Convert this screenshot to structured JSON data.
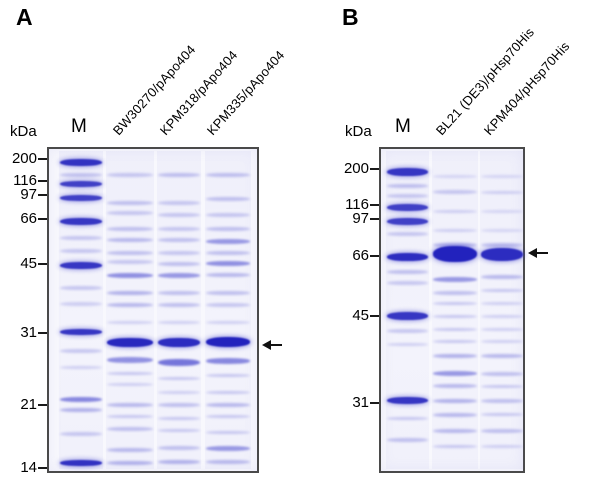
{
  "panels": [
    {
      "label": "A",
      "unit_label": "kDa",
      "marker_lane_label": "M",
      "sample_lane_labels": [
        "BW30270/pApo404",
        "KPM318/pApo404",
        "KPM335/pApo404"
      ],
      "markers": [
        {
          "kda": "200",
          "pct": 3.7
        },
        {
          "kda": "116",
          "pct": 10.4
        },
        {
          "kda": "97",
          "pct": 14.7
        },
        {
          "kda": "66",
          "pct": 22.1
        },
        {
          "kda": "45",
          "pct": 35.9
        },
        {
          "kda": "31",
          "pct": 57.0
        },
        {
          "kda": "21",
          "pct": 79.1
        },
        {
          "kda": "14",
          "pct": 98.5
        }
      ],
      "arrow_pct": 60.7,
      "lanes": [
        {
          "name": "M",
          "bands": [
            {
              "p": 3.7,
              "h": 7,
              "o": 0.92
            },
            {
              "p": 7.6,
              "h": 4,
              "o": 0.33
            },
            {
              "p": 10.4,
              "h": 6,
              "o": 0.85
            },
            {
              "p": 14.7,
              "h": 6,
              "o": 0.85
            },
            {
              "p": 22.1,
              "h": 7,
              "o": 0.9
            },
            {
              "p": 27.5,
              "h": 4,
              "o": 0.3
            },
            {
              "p": 31.5,
              "h": 4,
              "o": 0.3
            },
            {
              "p": 35.9,
              "h": 7,
              "o": 0.9
            },
            {
              "p": 43.0,
              "h": 4,
              "o": 0.3
            },
            {
              "p": 48.0,
              "h": 4,
              "o": 0.25
            },
            {
              "p": 57.0,
              "h": 6,
              "o": 0.9
            },
            {
              "p": 63.0,
              "h": 4,
              "o": 0.3
            },
            {
              "p": 68.0,
              "h": 3,
              "o": 0.25
            },
            {
              "p": 78.0,
              "h": 5,
              "o": 0.6
            },
            {
              "p": 81.5,
              "h": 4,
              "o": 0.45
            },
            {
              "p": 89.0,
              "h": 4,
              "o": 0.3
            },
            {
              "p": 98.0,
              "h": 6,
              "o": 0.92
            }
          ]
        },
        {
          "name": "BW30270/pApo404",
          "bands": [
            {
              "p": 7.6,
              "h": 4,
              "o": 0.3
            },
            {
              "p": 16.5,
              "h": 4,
              "o": 0.35
            },
            {
              "p": 19.5,
              "h": 4,
              "o": 0.3
            },
            {
              "p": 24.5,
              "h": 4,
              "o": 0.35
            },
            {
              "p": 28.0,
              "h": 4,
              "o": 0.4
            },
            {
              "p": 32.0,
              "h": 4,
              "o": 0.35
            },
            {
              "p": 35.0,
              "h": 4,
              "o": 0.3
            },
            {
              "p": 39.0,
              "h": 5,
              "o": 0.55
            },
            {
              "p": 44.5,
              "h": 4,
              "o": 0.45
            },
            {
              "p": 48.5,
              "h": 4,
              "o": 0.4
            },
            {
              "p": 54.0,
              "h": 3,
              "o": 0.25
            },
            {
              "p": 60.2,
              "h": 9,
              "o": 0.97
            },
            {
              "p": 65.8,
              "h": 6,
              "o": 0.55
            },
            {
              "p": 70.0,
              "h": 3,
              "o": 0.3
            },
            {
              "p": 73.5,
              "h": 3,
              "o": 0.25
            },
            {
              "p": 79.8,
              "h": 4,
              "o": 0.4
            },
            {
              "p": 83.5,
              "h": 3,
              "o": 0.3
            },
            {
              "p": 87.5,
              "h": 4,
              "o": 0.35
            },
            {
              "p": 94.0,
              "h": 4,
              "o": 0.4
            },
            {
              "p": 98.0,
              "h": 4,
              "o": 0.45
            }
          ]
        },
        {
          "name": "KPM318/pApo404",
          "bands": [
            {
              "p": 7.6,
              "h": 4,
              "o": 0.35
            },
            {
              "p": 16.5,
              "h": 4,
              "o": 0.3
            },
            {
              "p": 20.0,
              "h": 4,
              "o": 0.3
            },
            {
              "p": 24.5,
              "h": 4,
              "o": 0.3
            },
            {
              "p": 28.0,
              "h": 4,
              "o": 0.35
            },
            {
              "p": 32.0,
              "h": 4,
              "o": 0.3
            },
            {
              "p": 35.5,
              "h": 4,
              "o": 0.35
            },
            {
              "p": 39.0,
              "h": 5,
              "o": 0.5
            },
            {
              "p": 44.5,
              "h": 4,
              "o": 0.35
            },
            {
              "p": 48.5,
              "h": 4,
              "o": 0.35
            },
            {
              "p": 54.0,
              "h": 3,
              "o": 0.25
            },
            {
              "p": 60.2,
              "h": 9,
              "o": 0.95
            },
            {
              "p": 66.5,
              "h": 7,
              "o": 0.7
            },
            {
              "p": 71.5,
              "h": 3,
              "o": 0.3
            },
            {
              "p": 76.0,
              "h": 3,
              "o": 0.25
            },
            {
              "p": 79.8,
              "h": 4,
              "o": 0.35
            },
            {
              "p": 84.0,
              "h": 3,
              "o": 0.3
            },
            {
              "p": 88.0,
              "h": 3,
              "o": 0.3
            },
            {
              "p": 93.5,
              "h": 4,
              "o": 0.35
            },
            {
              "p": 97.8,
              "h": 4,
              "o": 0.45
            }
          ]
        },
        {
          "name": "KPM335/pApo404",
          "bands": [
            {
              "p": 7.6,
              "h": 4,
              "o": 0.35
            },
            {
              "p": 15.0,
              "h": 4,
              "o": 0.35
            },
            {
              "p": 20.0,
              "h": 4,
              "o": 0.3
            },
            {
              "p": 24.5,
              "h": 4,
              "o": 0.35
            },
            {
              "p": 28.5,
              "h": 5,
              "o": 0.5
            },
            {
              "p": 32.0,
              "h": 4,
              "o": 0.35
            },
            {
              "p": 35.5,
              "h": 5,
              "o": 0.55
            },
            {
              "p": 39.0,
              "h": 4,
              "o": 0.4
            },
            {
              "p": 44.5,
              "h": 4,
              "o": 0.35
            },
            {
              "p": 48.5,
              "h": 4,
              "o": 0.3
            },
            {
              "p": 54.0,
              "h": 3,
              "o": 0.25
            },
            {
              "p": 60.2,
              "h": 10,
              "o": 1.0
            },
            {
              "p": 66.0,
              "h": 6,
              "o": 0.6
            },
            {
              "p": 70.5,
              "h": 3,
              "o": 0.3
            },
            {
              "p": 76.0,
              "h": 3,
              "o": 0.3
            },
            {
              "p": 79.8,
              "h": 4,
              "o": 0.4
            },
            {
              "p": 83.5,
              "h": 3,
              "o": 0.3
            },
            {
              "p": 88.5,
              "h": 3,
              "o": 0.3
            },
            {
              "p": 93.5,
              "h": 5,
              "o": 0.5
            },
            {
              "p": 97.8,
              "h": 4,
              "o": 0.4
            }
          ]
        }
      ]
    },
    {
      "label": "B",
      "unit_label": "kDa",
      "marker_lane_label": "M",
      "sample_lane_labels": [
        "BL21 (DE3)/pHsp70His",
        "KPM404/pHsp70His"
      ],
      "markers": [
        {
          "kda": "200",
          "pct": 6.7
        },
        {
          "kda": "116",
          "pct": 17.8
        },
        {
          "kda": "97",
          "pct": 22.1
        },
        {
          "kda": "66",
          "pct": 33.4
        },
        {
          "kda": "45",
          "pct": 51.8
        },
        {
          "kda": "31",
          "pct": 78.5
        }
      ],
      "arrow_pct": 32.5,
      "lanes": [
        {
          "name": "M",
          "bands": [
            {
              "p": 6.7,
              "h": 8,
              "o": 0.9
            },
            {
              "p": 11.0,
              "h": 4,
              "o": 0.35
            },
            {
              "p": 14.0,
              "h": 4,
              "o": 0.3
            },
            {
              "p": 17.8,
              "h": 7,
              "o": 0.85
            },
            {
              "p": 22.1,
              "h": 7,
              "o": 0.85
            },
            {
              "p": 26.0,
              "h": 4,
              "o": 0.3
            },
            {
              "p": 33.4,
              "h": 8,
              "o": 0.95
            },
            {
              "p": 38.0,
              "h": 4,
              "o": 0.35
            },
            {
              "p": 41.5,
              "h": 4,
              "o": 0.3
            },
            {
              "p": 51.8,
              "h": 8,
              "o": 0.9
            },
            {
              "p": 56.5,
              "h": 4,
              "o": 0.3
            },
            {
              "p": 61.0,
              "h": 3,
              "o": 0.25
            },
            {
              "p": 78.5,
              "h": 7,
              "o": 0.9
            },
            {
              "p": 84.0,
              "h": 3,
              "o": 0.3
            },
            {
              "p": 91.0,
              "h": 4,
              "o": 0.35
            }
          ]
        },
        {
          "name": "BL21 (DE3)/pHsp70His",
          "bands": [
            {
              "p": 8.0,
              "h": 3,
              "o": 0.2
            },
            {
              "p": 13.0,
              "h": 4,
              "o": 0.3
            },
            {
              "p": 19.0,
              "h": 3,
              "o": 0.25
            },
            {
              "p": 25.0,
              "h": 3,
              "o": 0.25
            },
            {
              "p": 29.5,
              "h": 4,
              "o": 0.4
            },
            {
              "p": 32.5,
              "h": 16,
              "o": 1.0
            },
            {
              "p": 40.5,
              "h": 5,
              "o": 0.5
            },
            {
              "p": 44.5,
              "h": 4,
              "o": 0.35
            },
            {
              "p": 48.0,
              "h": 3,
              "o": 0.3
            },
            {
              "p": 52.0,
              "h": 3,
              "o": 0.3
            },
            {
              "p": 56.0,
              "h": 3,
              "o": 0.3
            },
            {
              "p": 60.0,
              "h": 3,
              "o": 0.3
            },
            {
              "p": 64.5,
              "h": 4,
              "o": 0.45
            },
            {
              "p": 70.0,
              "h": 5,
              "o": 0.5
            },
            {
              "p": 74.0,
              "h": 4,
              "o": 0.4
            },
            {
              "p": 78.5,
              "h": 4,
              "o": 0.45
            },
            {
              "p": 83.0,
              "h": 4,
              "o": 0.4
            },
            {
              "p": 88.0,
              "h": 4,
              "o": 0.4
            },
            {
              "p": 93.0,
              "h": 3,
              "o": 0.3
            }
          ]
        },
        {
          "name": "KPM404/pHsp70His",
          "bands": [
            {
              "p": 8.0,
              "h": 3,
              "o": 0.2
            },
            {
              "p": 13.0,
              "h": 3,
              "o": 0.25
            },
            {
              "p": 19.0,
              "h": 3,
              "o": 0.2
            },
            {
              "p": 25.0,
              "h": 3,
              "o": 0.2
            },
            {
              "p": 29.5,
              "h": 4,
              "o": 0.35
            },
            {
              "p": 32.5,
              "h": 13,
              "o": 0.95
            },
            {
              "p": 39.5,
              "h": 4,
              "o": 0.4
            },
            {
              "p": 44.0,
              "h": 3,
              "o": 0.3
            },
            {
              "p": 48.0,
              "h": 3,
              "o": 0.25
            },
            {
              "p": 52.0,
              "h": 3,
              "o": 0.25
            },
            {
              "p": 56.0,
              "h": 3,
              "o": 0.25
            },
            {
              "p": 60.0,
              "h": 3,
              "o": 0.25
            },
            {
              "p": 64.5,
              "h": 4,
              "o": 0.4
            },
            {
              "p": 70.0,
              "h": 4,
              "o": 0.35
            },
            {
              "p": 74.0,
              "h": 3,
              "o": 0.3
            },
            {
              "p": 78.5,
              "h": 4,
              "o": 0.35
            },
            {
              "p": 83.0,
              "h": 3,
              "o": 0.3
            },
            {
              "p": 88.0,
              "h": 4,
              "o": 0.35
            },
            {
              "p": 93.0,
              "h": 3,
              "o": 0.25
            }
          ]
        }
      ]
    }
  ]
}
